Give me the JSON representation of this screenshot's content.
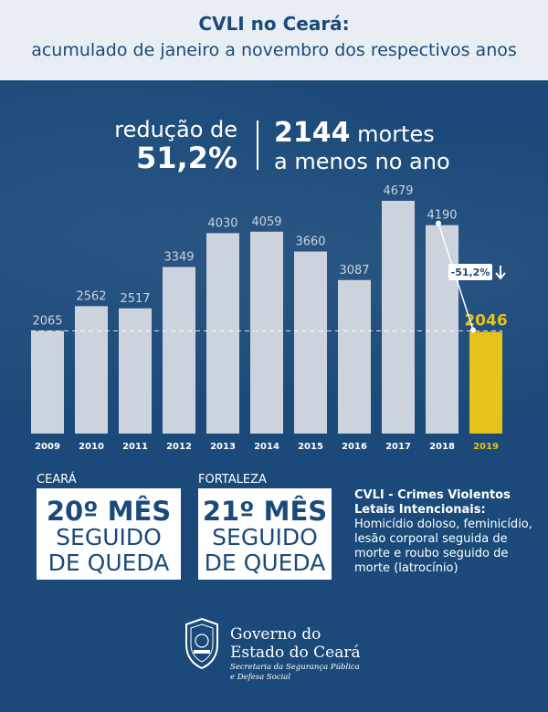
{
  "header": {
    "title": "CVLI no Ceará:",
    "subtitle": "acumulado de janeiro a novembro dos respectivos anos"
  },
  "stats": {
    "reduction_label": "redução de",
    "reduction_value": "51,2%",
    "deaths_value": "2144",
    "deaths_suffix": " mortes",
    "deaths_line2": "a menos no ano"
  },
  "chart_data": {
    "type": "bar",
    "categories": [
      "2009",
      "2010",
      "2011",
      "2012",
      "2013",
      "2014",
      "2015",
      "2016",
      "2017",
      "2018",
      "2019"
    ],
    "values": [
      2065,
      2562,
      2517,
      3349,
      4030,
      4059,
      3660,
      3087,
      4679,
      4190,
      2046
    ],
    "value_labels": [
      "2065",
      "2562",
      "2517",
      "3349",
      "4030",
      "4059",
      "3660",
      "3087",
      "4679",
      "4190",
      "2046"
    ],
    "highlight_index": 10,
    "annotation": "-51,2%",
    "ylim": [
      0,
      4800
    ],
    "colors": {
      "bar": "#cdd3dd",
      "highlight": "#e5c31a",
      "label": "#cdd3dd",
      "highlight_label": "#e5c31a"
    }
  },
  "boxes": [
    {
      "label": "CEARÁ",
      "line1": "20º MÊS",
      "line2": "SEGUIDO",
      "line3": "DE QUEDA"
    },
    {
      "label": "FORTALEZA",
      "line1": "21º MÊS",
      "line2": "SEGUIDO",
      "line3": "DE QUEDA"
    }
  ],
  "definition": {
    "title": "CVLI - Crimes Violentos Letais Intencionais:",
    "body": "Homicídio doloso, feminicídio, lesão corporal seguida de morte e roubo seguido de morte (latrocínio)"
  },
  "footer": {
    "gov_line1": "Governo do",
    "gov_line2": "Estado do Ceará",
    "dept_line1": "Secretaria da Segurança Pública",
    "dept_line2": "e Defesa Social"
  },
  "colors": {
    "background": "#1b4a7a",
    "header_bg": "#e8eef4",
    "accent": "#e5c31a"
  }
}
